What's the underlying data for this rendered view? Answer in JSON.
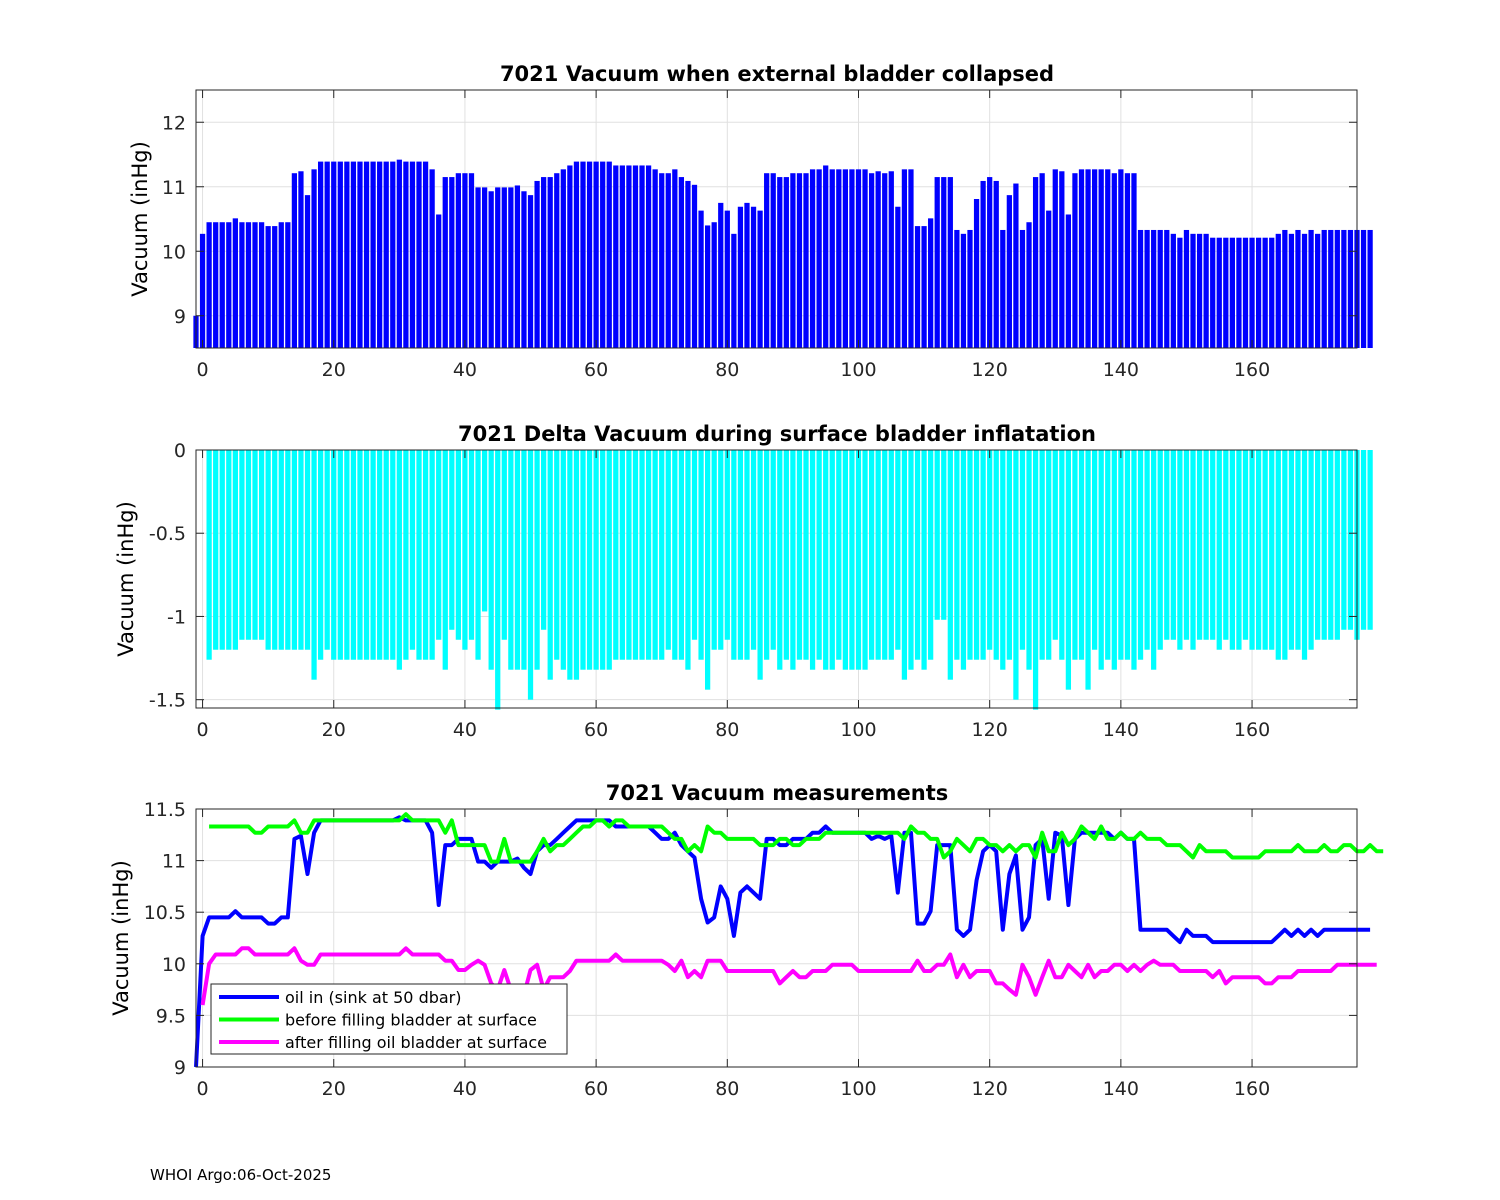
{
  "footer": "WHOI Argo:06-Oct-2025",
  "colors": {
    "bar1": "#0000ff",
    "bar2": "#00ffff",
    "oil_in": "#0000ff",
    "before": "#00ff00",
    "after": "#ff00ff",
    "grid": "#e0e0e0"
  },
  "chart_data": [
    {
      "type": "bar",
      "title": "7021 Vacuum when external bladder collapsed",
      "xlabel": "",
      "ylabel": "Vacuum (inHg)",
      "xlim": [
        -1,
        176
      ],
      "ylim": [
        8.5,
        12.5
      ],
      "xticks": [
        0,
        20,
        40,
        60,
        80,
        100,
        120,
        140,
        160
      ],
      "yticks": [
        9,
        10,
        11,
        12
      ],
      "grid": true,
      "x_start": -1,
      "values": [
        9.0,
        10.27,
        10.45,
        10.45,
        10.45,
        10.45,
        10.51,
        10.45,
        10.45,
        10.45,
        10.45,
        10.39,
        10.39,
        10.45,
        10.45,
        11.21,
        11.24,
        10.87,
        11.27,
        11.39,
        11.39,
        11.39,
        11.39,
        11.39,
        11.39,
        11.39,
        11.39,
        11.39,
        11.39,
        11.39,
        11.39,
        11.42,
        11.39,
        11.39,
        11.39,
        11.39,
        11.27,
        10.57,
        11.15,
        11.15,
        11.21,
        11.21,
        11.21,
        10.99,
        10.99,
        10.93,
        10.99,
        10.99,
        10.99,
        11.02,
        10.93,
        10.87,
        11.09,
        11.15,
        11.15,
        11.21,
        11.27,
        11.33,
        11.39,
        11.39,
        11.39,
        11.39,
        11.39,
        11.39,
        11.33,
        11.33,
        11.33,
        11.33,
        11.33,
        11.33,
        11.27,
        11.21,
        11.21,
        11.27,
        11.15,
        11.09,
        11.03,
        10.63,
        10.4,
        10.45,
        10.75,
        10.63,
        10.27,
        10.69,
        10.75,
        10.69,
        10.63,
        11.21,
        11.21,
        11.15,
        11.15,
        11.21,
        11.21,
        11.21,
        11.27,
        11.27,
        11.33,
        11.27,
        11.27,
        11.27,
        11.27,
        11.27,
        11.27,
        11.21,
        11.24,
        11.21,
        11.24,
        10.69,
        11.27,
        11.27,
        10.39,
        10.39,
        10.51,
        11.15,
        11.15,
        11.15,
        10.33,
        10.27,
        10.33,
        10.81,
        11.09,
        11.15,
        11.09,
        10.33,
        10.87,
        11.05,
        10.33,
        10.45,
        11.15,
        11.21,
        10.63,
        11.27,
        11.24,
        10.57,
        11.21,
        11.27,
        11.27,
        11.27,
        11.27,
        11.27,
        11.21,
        11.27,
        11.21,
        11.21,
        10.33,
        10.33,
        10.33,
        10.33,
        10.33,
        10.27,
        10.21,
        10.33,
        10.27,
        10.27,
        10.27,
        10.21,
        10.21,
        10.21,
        10.21,
        10.21,
        10.21,
        10.21,
        10.21,
        10.21,
        10.21,
        10.27,
        10.33,
        10.27,
        10.33,
        10.27,
        10.33,
        10.27,
        10.33,
        10.33,
        10.33,
        10.33,
        10.33,
        10.33,
        10.33,
        10.33
      ]
    },
    {
      "type": "bar",
      "title": "7021 Delta Vacuum during surface bladder inflatation",
      "xlabel": "",
      "ylabel": "Vacuum (inHg)",
      "xlim": [
        -1,
        176
      ],
      "ylim": [
        -1.55,
        0
      ],
      "xticks": [
        0,
        20,
        40,
        60,
        80,
        100,
        120,
        140,
        160
      ],
      "yticks": [
        0,
        -0.5,
        -1,
        -1.5
      ],
      "yticklabels": [
        "0",
        "-0.5",
        "-1",
        "-1.5"
      ],
      "grid": true,
      "x_start": 0,
      "values": [
        0,
        -1.26,
        -1.2,
        -1.2,
        -1.2,
        -1.2,
        -1.14,
        -1.14,
        -1.14,
        -1.14,
        -1.2,
        -1.2,
        -1.2,
        -1.2,
        -1.2,
        -1.2,
        -1.2,
        -1.38,
        -1.26,
        -1.2,
        -1.26,
        -1.26,
        -1.26,
        -1.26,
        -1.26,
        -1.26,
        -1.26,
        -1.26,
        -1.26,
        -1.26,
        -1.32,
        -1.26,
        -1.2,
        -1.26,
        -1.26,
        -1.26,
        -1.14,
        -1.32,
        -1.08,
        -1.14,
        -1.2,
        -1.14,
        -1.26,
        -0.97,
        -1.32,
        -1.56,
        -1.14,
        -1.32,
        -1.32,
        -1.32,
        -1.5,
        -1.32,
        -1.08,
        -1.38,
        -1.26,
        -1.32,
        -1.38,
        -1.38,
        -1.32,
        -1.32,
        -1.32,
        -1.32,
        -1.32,
        -1.26,
        -1.26,
        -1.26,
        -1.26,
        -1.26,
        -1.26,
        -1.26,
        -1.26,
        -1.2,
        -1.26,
        -1.26,
        -1.32,
        -1.14,
        -1.26,
        -1.44,
        -1.2,
        -1.2,
        -1.14,
        -1.26,
        -1.26,
        -1.26,
        -1.2,
        -1.38,
        -1.26,
        -1.2,
        -1.32,
        -1.26,
        -1.32,
        -1.26,
        -1.26,
        -1.32,
        -1.26,
        -1.32,
        -1.32,
        -1.26,
        -1.32,
        -1.32,
        -1.32,
        -1.32,
        -1.26,
        -1.26,
        -1.26,
        -1.26,
        -1.2,
        -1.38,
        -1.32,
        -1.26,
        -1.32,
        -1.26,
        -1.02,
        -1.02,
        -1.38,
        -1.26,
        -1.32,
        -1.26,
        -1.26,
        -1.26,
        -1.2,
        -1.26,
        -1.32,
        -1.26,
        -1.5,
        -1.2,
        -1.32,
        -1.56,
        -1.26,
        -1.26,
        -1.14,
        -1.26,
        -1.44,
        -1.26,
        -1.26,
        -1.44,
        -1.2,
        -1.32,
        -1.26,
        -1.32,
        -1.26,
        -1.26,
        -1.32,
        -1.26,
        -1.2,
        -1.32,
        -1.2,
        -1.14,
        -1.14,
        -1.2,
        -1.14,
        -1.2,
        -1.14,
        -1.14,
        -1.14,
        -1.2,
        -1.14,
        -1.2,
        -1.2,
        -1.14,
        -1.2,
        -1.2,
        -1.2,
        -1.2,
        -1.26,
        -1.26,
        -1.2,
        -1.2,
        -1.26,
        -1.2,
        -1.14,
        -1.14,
        -1.14,
        -1.14,
        -1.08,
        -1.08,
        -1.14,
        -1.08,
        -1.08
      ]
    },
    {
      "type": "line",
      "title": "7021 Vacuum measurements",
      "xlabel": "",
      "ylabel": "Vacuum (inHg)",
      "xlim": [
        -1,
        176
      ],
      "ylim": [
        9,
        11.5
      ],
      "xticks": [
        0,
        20,
        40,
        60,
        80,
        100,
        120,
        140,
        160
      ],
      "yticks": [
        9,
        9.5,
        10,
        10.5,
        11,
        11.5
      ],
      "yticklabels": [
        "9",
        "9.5",
        "10",
        "10.5",
        "11",
        "11.5"
      ],
      "grid": true,
      "legend_position": "bottom-left",
      "series": [
        {
          "name": "oil in (sink at 50 dbar)",
          "color": "#0000ff",
          "x_start": -1,
          "values": [
            9.0,
            10.27,
            10.45,
            10.45,
            10.45,
            10.45,
            10.51,
            10.45,
            10.45,
            10.45,
            10.45,
            10.39,
            10.39,
            10.45,
            10.45,
            11.21,
            11.24,
            10.87,
            11.27,
            11.39,
            11.39,
            11.39,
            11.39,
            11.39,
            11.39,
            11.39,
            11.39,
            11.39,
            11.39,
            11.39,
            11.39,
            11.42,
            11.39,
            11.39,
            11.39,
            11.39,
            11.27,
            10.57,
            11.15,
            11.15,
            11.21,
            11.21,
            11.21,
            10.99,
            10.99,
            10.93,
            10.99,
            10.99,
            10.99,
            11.02,
            10.93,
            10.87,
            11.09,
            11.15,
            11.15,
            11.21,
            11.27,
            11.33,
            11.39,
            11.39,
            11.39,
            11.39,
            11.39,
            11.39,
            11.33,
            11.33,
            11.33,
            11.33,
            11.33,
            11.33,
            11.27,
            11.21,
            11.21,
            11.27,
            11.15,
            11.09,
            11.03,
            10.63,
            10.4,
            10.45,
            10.75,
            10.63,
            10.27,
            10.69,
            10.75,
            10.69,
            10.63,
            11.21,
            11.21,
            11.15,
            11.15,
            11.21,
            11.21,
            11.21,
            11.27,
            11.27,
            11.33,
            11.27,
            11.27,
            11.27,
            11.27,
            11.27,
            11.27,
            11.21,
            11.24,
            11.21,
            11.24,
            10.69,
            11.27,
            11.27,
            10.39,
            10.39,
            10.51,
            11.15,
            11.15,
            11.15,
            10.33,
            10.27,
            10.33,
            10.81,
            11.09,
            11.15,
            11.09,
            10.33,
            10.87,
            11.05,
            10.33,
            10.45,
            11.15,
            11.21,
            10.63,
            11.27,
            11.24,
            10.57,
            11.21,
            11.27,
            11.27,
            11.27,
            11.27,
            11.27,
            11.21,
            11.27,
            11.21,
            11.21,
            10.33,
            10.33,
            10.33,
            10.33,
            10.33,
            10.27,
            10.21,
            10.33,
            10.27,
            10.27,
            10.27,
            10.21,
            10.21,
            10.21,
            10.21,
            10.21,
            10.21,
            10.21,
            10.21,
            10.21,
            10.21,
            10.27,
            10.33,
            10.27,
            10.33,
            10.27,
            10.33,
            10.27,
            10.33,
            10.33,
            10.33,
            10.33,
            10.33,
            10.33,
            10.33,
            10.33
          ]
        },
        {
          "name": "before filling bladder at surface",
          "color": "#00ff00",
          "x_start": 1,
          "values": [
            11.33,
            11.33,
            11.33,
            11.33,
            11.33,
            11.33,
            11.33,
            11.27,
            11.27,
            11.33,
            11.33,
            11.33,
            11.33,
            11.39,
            11.27,
            11.27,
            11.39,
            11.39,
            11.39,
            11.39,
            11.39,
            11.39,
            11.39,
            11.39,
            11.39,
            11.39,
            11.39,
            11.39,
            11.39,
            11.39,
            11.45,
            11.39,
            11.39,
            11.39,
            11.39,
            11.39,
            11.27,
            11.39,
            11.15,
            11.15,
            11.15,
            11.15,
            11.15,
            10.99,
            10.99,
            11.21,
            10.99,
            10.99,
            10.99,
            10.99,
            11.09,
            11.21,
            11.09,
            11.15,
            11.15,
            11.21,
            11.27,
            11.33,
            11.33,
            11.39,
            11.39,
            11.33,
            11.39,
            11.39,
            11.33,
            11.33,
            11.33,
            11.33,
            11.33,
            11.33,
            11.27,
            11.21,
            11.21,
            11.09,
            11.15,
            11.09,
            11.33,
            11.27,
            11.27,
            11.21,
            11.21,
            11.21,
            11.21,
            11.21,
            11.15,
            11.15,
            11.15,
            11.21,
            11.21,
            11.15,
            11.15,
            11.21,
            11.21,
            11.21,
            11.27,
            11.27,
            11.27,
            11.27,
            11.27,
            11.27,
            11.27,
            11.27,
            11.27,
            11.27,
            11.27,
            11.27,
            11.21,
            11.33,
            11.27,
            11.27,
            11.21,
            11.21,
            11.03,
            11.09,
            11.21,
            11.15,
            11.09,
            11.21,
            11.21,
            11.15,
            11.15,
            11.09,
            11.15,
            11.09,
            11.15,
            11.15,
            11.03,
            11.27,
            11.09,
            11.09,
            11.27,
            11.15,
            11.21,
            11.33,
            11.27,
            11.21,
            11.33,
            11.21,
            11.21,
            11.27,
            11.21,
            11.21,
            11.27,
            11.21,
            11.21,
            11.21,
            11.15,
            11.15,
            11.15,
            11.09,
            11.03,
            11.15,
            11.09,
            11.09,
            11.09,
            11.09,
            11.03,
            11.03,
            11.03,
            11.03,
            11.03,
            11.09,
            11.09,
            11.09,
            11.09,
            11.09,
            11.15,
            11.09,
            11.09,
            11.09,
            11.15,
            11.09,
            11.09,
            11.15,
            11.15,
            11.09,
            11.09,
            11.15,
            11.09,
            11.09
          ]
        },
        {
          "name": "after filling oil bladder at surface",
          "color": "#ff00ff",
          "x_start": 0,
          "values": [
            9.6,
            10.0,
            10.09,
            10.09,
            10.09,
            10.09,
            10.15,
            10.15,
            10.09,
            10.09,
            10.09,
            10.09,
            10.09,
            10.09,
            10.15,
            10.03,
            9.99,
            9.99,
            10.09,
            10.09,
            10.09,
            10.09,
            10.09,
            10.09,
            10.09,
            10.09,
            10.09,
            10.09,
            10.09,
            10.09,
            10.09,
            10.15,
            10.09,
            10.09,
            10.09,
            10.09,
            10.09,
            10.03,
            10.03,
            9.94,
            9.94,
            9.99,
            10.03,
            9.99,
            9.81,
            9.75,
            9.94,
            9.75,
            9.7,
            9.7,
            9.94,
            9.99,
            9.75,
            9.87,
            9.87,
            9.87,
            9.93,
            10.03,
            10.03,
            10.03,
            10.03,
            10.03,
            10.03,
            10.09,
            10.03,
            10.03,
            10.03,
            10.03,
            10.03,
            10.03,
            10.03,
            9.99,
            9.93,
            10.03,
            9.87,
            9.93,
            9.87,
            10.03,
            10.03,
            10.03,
            9.93,
            9.93,
            9.93,
            9.93,
            9.93,
            9.93,
            9.93,
            9.93,
            9.81,
            9.87,
            9.93,
            9.87,
            9.87,
            9.93,
            9.93,
            9.93,
            9.99,
            9.99,
            9.99,
            9.99,
            9.93,
            9.93,
            9.93,
            9.93,
            9.93,
            9.93,
            9.93,
            9.93,
            9.93,
            10.03,
            9.93,
            9.93,
            9.99,
            9.99,
            10.09,
            9.87,
            9.99,
            9.87,
            9.93,
            9.93,
            9.93,
            9.81,
            9.81,
            9.75,
            9.7,
            9.99,
            9.87,
            9.7,
            9.87,
            10.03,
            9.87,
            9.87,
            9.99,
            9.93,
            9.87,
            9.99,
            9.87,
            9.93,
            9.93,
            9.99,
            9.99,
            9.93,
            9.99,
            9.93,
            9.99,
            10.03,
            9.99,
            9.99,
            9.99,
            9.93,
            9.93,
            9.93,
            9.93,
            9.93,
            9.87,
            9.93,
            9.81,
            9.87,
            9.87,
            9.87,
            9.87,
            9.87,
            9.81,
            9.81,
            9.87,
            9.87,
            9.87,
            9.93,
            9.93,
            9.93,
            9.93,
            9.93,
            9.93,
            9.99,
            9.99,
            9.99,
            9.99,
            9.99,
            9.99,
            9.99
          ]
        }
      ]
    }
  ]
}
